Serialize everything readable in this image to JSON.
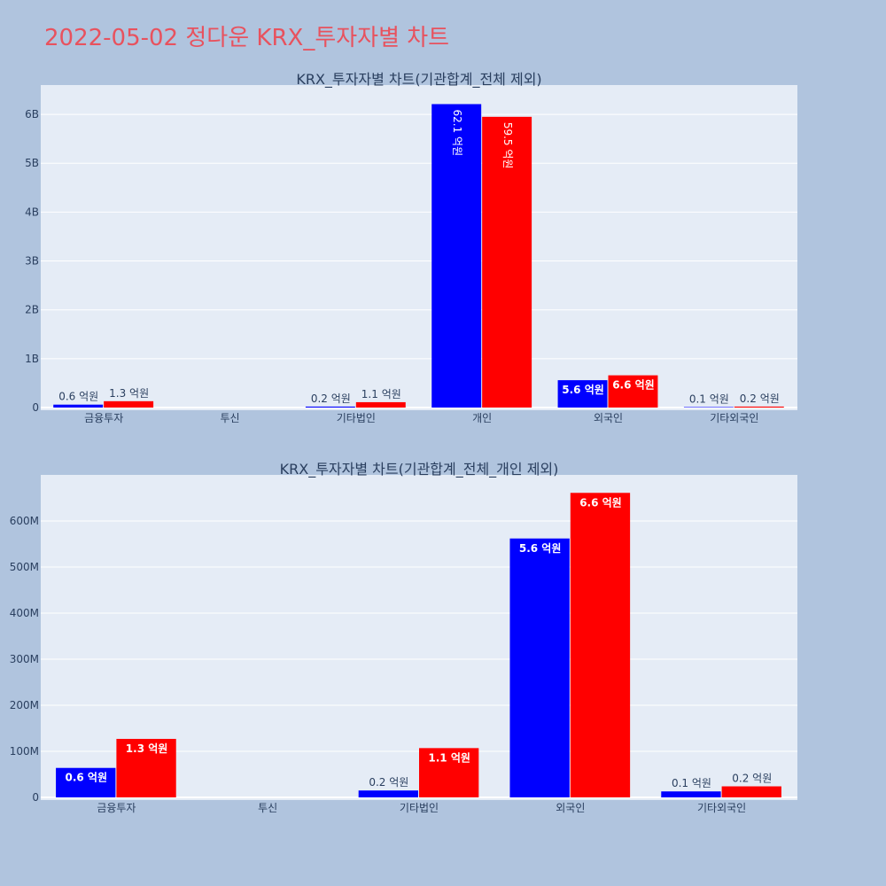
{
  "title": "2022-05-02 정다운 KRX_투자자별 차트",
  "colors": {
    "buy": "#0000ff",
    "sell": "#ff0000",
    "plot_bg": "#e5ecf6",
    "page_bg": "#b0c4de",
    "title": "#e8525e"
  },
  "chart_data": [
    {
      "type": "bar",
      "title": "KRX_투자자별 차트(기관합계_전체 제외)",
      "categories": [
        "금융투자",
        "투신",
        "기타법인",
        "개인",
        "외국인",
        "기타외국인"
      ],
      "ylim": [
        0,
        6600000000
      ],
      "yticks": [
        0,
        1000000000,
        2000000000,
        3000000000,
        4000000000,
        5000000000,
        6000000000
      ],
      "ytick_labels": [
        "0",
        "1B",
        "2B",
        "3B",
        "4B",
        "5B",
        "6B"
      ],
      "series": [
        {
          "color": "#0000ff",
          "values": [
            60000000,
            0,
            20000000,
            6210000000,
            560000000,
            10000000
          ],
          "labels": [
            "0.6 억원",
            "",
            "0.2 억원",
            "62.1 억원",
            "5.6 억원",
            "0.1 억원"
          ]
        },
        {
          "color": "#ff0000",
          "values": [
            130000000,
            0,
            110000000,
            5950000000,
            660000000,
            20000000
          ],
          "labels": [
            "1.3 억원",
            "",
            "1.1 억원",
            "59.5 억원",
            "6.6 억원",
            "0.2 억원"
          ]
        }
      ]
    },
    {
      "type": "bar",
      "title": "KRX_투자자별 차트(기관합계_전체_개인 제외)",
      "categories": [
        "금융투자",
        "투신",
        "기타법인",
        "외국인",
        "기타외국인"
      ],
      "ylim": [
        0,
        700000000
      ],
      "yticks": [
        0,
        100000000,
        200000000,
        300000000,
        400000000,
        500000000,
        600000000
      ],
      "ytick_labels": [
        "0",
        "100M",
        "200M",
        "300M",
        "400M",
        "500M",
        "600M"
      ],
      "series": [
        {
          "color": "#0000ff",
          "values": [
            64000000,
            0,
            15000000,
            562000000,
            13000000
          ],
          "labels": [
            "0.6 억원",
            "",
            "0.2 억원",
            "5.6 억원",
            "0.1 억원"
          ]
        },
        {
          "color": "#ff0000",
          "values": [
            127000000,
            0,
            107000000,
            661000000,
            24000000
          ],
          "labels": [
            "1.3 억원",
            "",
            "1.1 억원",
            "6.6 억원",
            "0.2 억원"
          ]
        }
      ]
    }
  ]
}
